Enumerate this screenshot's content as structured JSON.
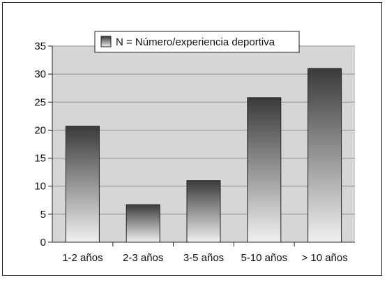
{
  "chart_data": {
    "type": "bar",
    "categories": [
      "1-2 años",
      "2-3 años",
      "3-5 años",
      "5-10 años",
      "> 10 años"
    ],
    "series": [
      {
        "name": "N = Número/experiencia deportiva",
        "values": [
          20.7,
          6.7,
          11,
          25.8,
          31
        ]
      }
    ],
    "y_ticks": [
      "0",
      "5",
      "10",
      "15",
      "20",
      "25",
      "30",
      "35"
    ],
    "ylim": [
      0,
      35
    ],
    "grid": true,
    "legend_position": "top-center",
    "colors": {
      "bar_top": "#3a3a3a",
      "bar_bottom": "#f0f0f0",
      "plot_bg": "#d6d6d6",
      "grid": "#8f8f8f"
    }
  }
}
